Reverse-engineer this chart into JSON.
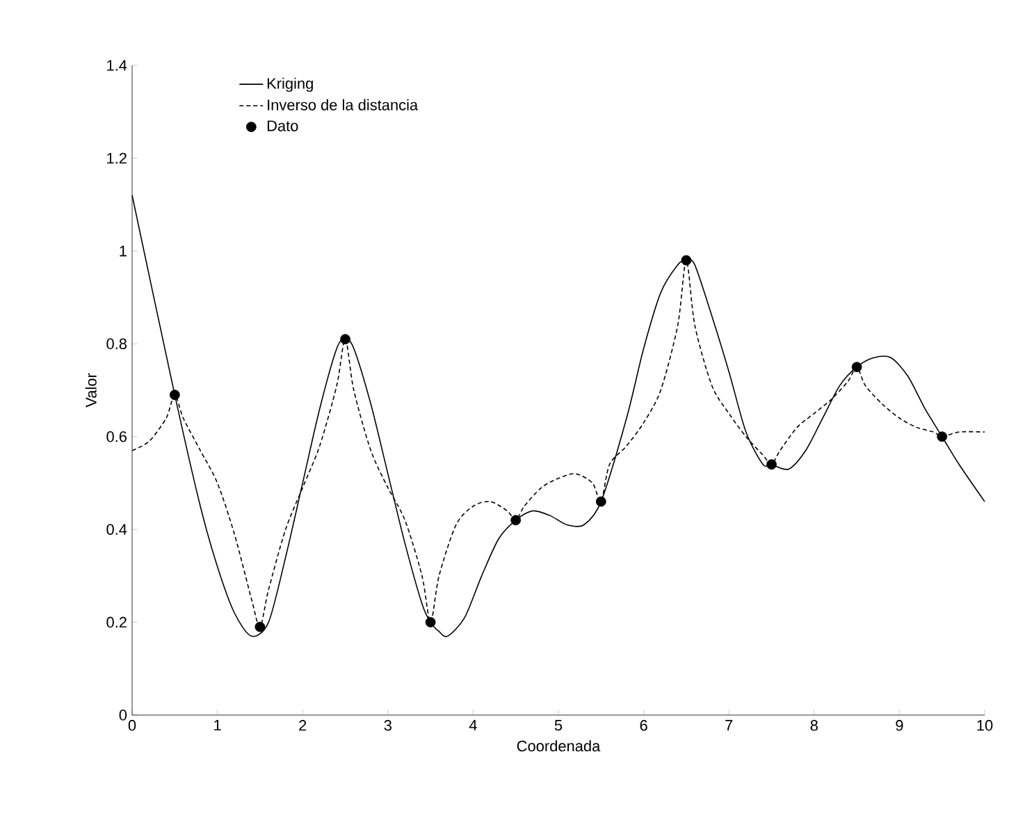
{
  "chart_data": {
    "type": "line",
    "xlabel": "Coordenada",
    "ylabel": "Valor",
    "xlim": [
      0,
      10
    ],
    "ylim": [
      0,
      1.4
    ],
    "xticks": [
      0,
      1,
      2,
      3,
      4,
      5,
      6,
      7,
      8,
      9,
      10
    ],
    "yticks": [
      0,
      0.2,
      0.4,
      0.6,
      0.8,
      1,
      1.2,
      1.4
    ],
    "grid": false,
    "legend": "top left",
    "series": [
      {
        "name": "Kriging",
        "color": "#000000",
        "line_style": "solid",
        "marker": "none",
        "x": [
          0,
          0.5,
          0.8,
          1.0,
          1.2,
          1.4,
          1.6,
          1.8,
          2.0,
          2.2,
          2.4,
          2.5,
          2.6,
          2.8,
          3.0,
          3.2,
          3.4,
          3.5,
          3.6,
          3.7,
          3.9,
          4.1,
          4.3,
          4.5,
          4.7,
          4.9,
          5.1,
          5.3,
          5.5,
          5.8,
          6.0,
          6.2,
          6.4,
          6.5,
          6.6,
          6.8,
          7.0,
          7.2,
          7.4,
          7.5,
          7.7,
          7.9,
          8.1,
          8.3,
          8.5,
          8.7,
          8.9,
          9.1,
          9.3,
          9.5,
          9.7,
          10
        ],
        "values": [
          1.12,
          0.69,
          0.45,
          0.32,
          0.22,
          0.17,
          0.2,
          0.34,
          0.5,
          0.66,
          0.79,
          0.81,
          0.79,
          0.67,
          0.52,
          0.37,
          0.24,
          0.2,
          0.18,
          0.17,
          0.21,
          0.3,
          0.38,
          0.42,
          0.44,
          0.43,
          0.41,
          0.41,
          0.46,
          0.64,
          0.79,
          0.91,
          0.97,
          0.98,
          0.97,
          0.86,
          0.74,
          0.61,
          0.54,
          0.54,
          0.53,
          0.57,
          0.64,
          0.71,
          0.75,
          0.77,
          0.77,
          0.73,
          0.66,
          0.6,
          0.54,
          0.46
        ]
      },
      {
        "name": "Inverso de la distancia",
        "color": "#000000",
        "line_style": "dashed",
        "marker": "none",
        "x": [
          0,
          0.2,
          0.4,
          0.5,
          0.6,
          0.8,
          1.0,
          1.2,
          1.4,
          1.5,
          1.6,
          1.8,
          2.0,
          2.2,
          2.4,
          2.5,
          2.6,
          2.8,
          3.0,
          3.2,
          3.4,
          3.5,
          3.6,
          3.8,
          4.0,
          4.2,
          4.4,
          4.5,
          4.6,
          4.8,
          5.0,
          5.2,
          5.4,
          5.5,
          5.6,
          5.8,
          6.0,
          6.2,
          6.4,
          6.5,
          6.6,
          6.8,
          7.0,
          7.2,
          7.4,
          7.5,
          7.6,
          7.8,
          8.0,
          8.2,
          8.4,
          8.5,
          8.6,
          8.8,
          9.0,
          9.2,
          9.4,
          9.5,
          9.7,
          10
        ],
        "values": [
          0.57,
          0.59,
          0.64,
          0.69,
          0.64,
          0.57,
          0.5,
          0.39,
          0.25,
          0.19,
          0.27,
          0.4,
          0.49,
          0.58,
          0.71,
          0.81,
          0.7,
          0.57,
          0.49,
          0.42,
          0.3,
          0.2,
          0.3,
          0.41,
          0.45,
          0.46,
          0.44,
          0.42,
          0.45,
          0.49,
          0.51,
          0.52,
          0.5,
          0.46,
          0.54,
          0.58,
          0.63,
          0.7,
          0.84,
          0.98,
          0.84,
          0.71,
          0.65,
          0.6,
          0.56,
          0.54,
          0.57,
          0.62,
          0.65,
          0.68,
          0.72,
          0.75,
          0.71,
          0.67,
          0.64,
          0.62,
          0.61,
          0.6,
          0.61,
          0.61
        ]
      },
      {
        "name": "Dato",
        "type": "scatter",
        "color": "#000000",
        "marker": "circle",
        "x": [
          0.5,
          1.5,
          2.5,
          3.5,
          4.5,
          5.5,
          6.5,
          7.5,
          8.5,
          9.5
        ],
        "values": [
          0.69,
          0.19,
          0.81,
          0.2,
          0.42,
          0.46,
          0.98,
          0.54,
          0.75,
          0.6
        ]
      }
    ]
  }
}
